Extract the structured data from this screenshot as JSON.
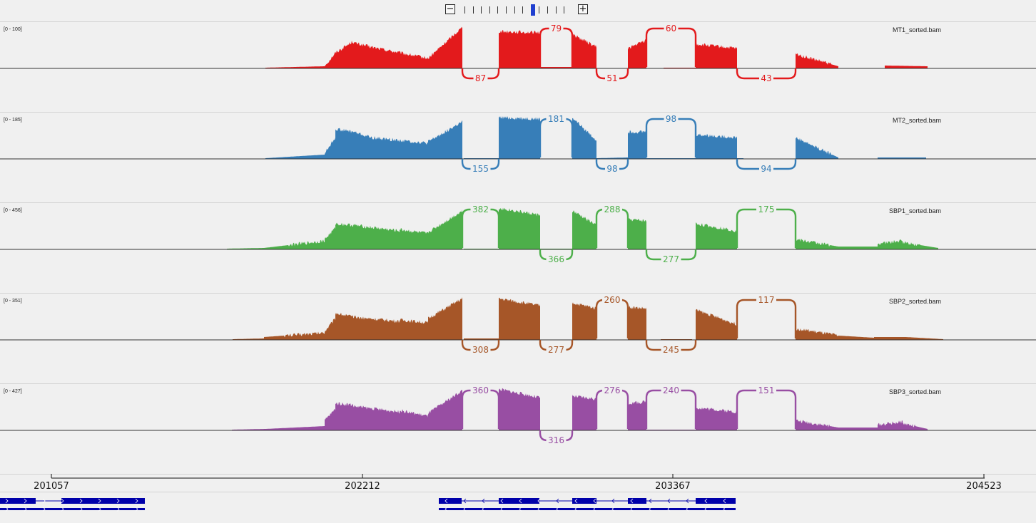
{
  "zoom": {
    "minus": "−",
    "plus": "+",
    "levels": 13,
    "active_level": 8
  },
  "tracks": [
    {
      "id": "mt1",
      "name": "MT1_sorted.bam",
      "range": "[0 - 100]",
      "color": "#e31a1c",
      "coverage": "mt1",
      "junctions": [
        {
          "from": 648,
          "to": 699,
          "label": "87",
          "side": "below"
        },
        {
          "from": 757,
          "to": 802,
          "label": "79",
          "side": "above"
        },
        {
          "from": 836,
          "to": 880,
          "label": "51",
          "side": "below"
        },
        {
          "from": 906,
          "to": 975,
          "label": "60",
          "side": "above"
        },
        {
          "from": 1033,
          "to": 1115,
          "label": "43",
          "side": "below"
        }
      ]
    },
    {
      "id": "mt2",
      "name": "MT2_sorted.bam",
      "range": "[0 - 185]",
      "color": "#377eb8",
      "coverage": "mt2",
      "junctions": [
        {
          "from": 648,
          "to": 699,
          "label": "155",
          "side": "below"
        },
        {
          "from": 757,
          "to": 802,
          "label": "181",
          "side": "above"
        },
        {
          "from": 836,
          "to": 880,
          "label": "98",
          "side": "below"
        },
        {
          "from": 906,
          "to": 975,
          "label": "98",
          "side": "above"
        },
        {
          "from": 1033,
          "to": 1115,
          "label": "94",
          "side": "below"
        }
      ]
    },
    {
      "id": "sbp1",
      "name": "SBP1_sorted.bam",
      "range": "[0 - 456]",
      "color": "#4daf4a",
      "coverage": "sbp1",
      "junctions": [
        {
          "from": 648,
          "to": 699,
          "label": "382",
          "side": "above"
        },
        {
          "from": 757,
          "to": 802,
          "label": "366",
          "side": "below"
        },
        {
          "from": 836,
          "to": 880,
          "label": "288",
          "side": "above"
        },
        {
          "from": 906,
          "to": 975,
          "label": "277",
          "side": "below"
        },
        {
          "from": 1033,
          "to": 1115,
          "label": "175",
          "side": "above"
        }
      ]
    },
    {
      "id": "sbp2",
      "name": "SBP2_sorted.bam",
      "range": "[0 - 351]",
      "color": "#a65628",
      "coverage": "sbp2",
      "junctions": [
        {
          "from": 648,
          "to": 699,
          "label": "308",
          "side": "below"
        },
        {
          "from": 757,
          "to": 802,
          "label": "277",
          "side": "below"
        },
        {
          "from": 836,
          "to": 880,
          "label": "260",
          "side": "above"
        },
        {
          "from": 906,
          "to": 975,
          "label": "245",
          "side": "below"
        },
        {
          "from": 1033,
          "to": 1115,
          "label": "117",
          "side": "above"
        }
      ]
    },
    {
      "id": "sbp3",
      "name": "SBP3_sorted.bam",
      "range": "[0 - 427]",
      "color": "#984ea3",
      "coverage": "sbp3",
      "junctions": [
        {
          "from": 648,
          "to": 699,
          "label": "360",
          "side": "above"
        },
        {
          "from": 757,
          "to": 802,
          "label": "316",
          "side": "below"
        },
        {
          "from": 836,
          "to": 880,
          "label": "276",
          "side": "above"
        },
        {
          "from": 906,
          "to": 975,
          "label": "240",
          "side": "above"
        },
        {
          "from": 1033,
          "to": 1115,
          "label": "151",
          "side": "above"
        }
      ]
    }
  ],
  "ruler": {
    "ticks": [
      "201057",
      "202212",
      "203367",
      "204523"
    ]
  },
  "genes": {
    "color": "#0000aa"
  }
}
